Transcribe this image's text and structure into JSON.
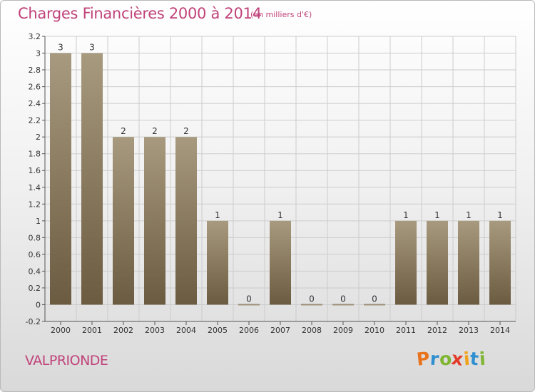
{
  "header": {
    "title": "Charges Financières 2000 à 2014",
    "subtitle": "(en milliers d'€)"
  },
  "footer": {
    "commune": "VALPRIONDE",
    "logo_letters": [
      "P",
      "r",
      "o",
      "x",
      "i",
      "t",
      "i"
    ],
    "logo_colors": [
      "#e8731c",
      "#2f8fd0",
      "#7fb531",
      "#e33b2a",
      "#f0a21b",
      "#2f8fd0",
      "#7fb531"
    ]
  },
  "colors": {
    "title": "#c0437a",
    "bar_top": "#a89a7e",
    "bar_bottom": "#6b5b40",
    "grid": "#cccccc"
  },
  "chart_data": {
    "type": "bar",
    "title": "Charges Financières 2000 à 2014",
    "subtitle": "(en milliers d'€)",
    "xlabel": "",
    "ylabel": "",
    "categories": [
      "2000",
      "2001",
      "2002",
      "2003",
      "2004",
      "2005",
      "2006",
      "2007",
      "2008",
      "2009",
      "2010",
      "2011",
      "2012",
      "2013",
      "2014"
    ],
    "values": [
      3,
      3,
      2,
      2,
      2,
      1,
      0,
      1,
      0,
      0,
      0,
      1,
      1,
      1,
      1
    ],
    "data_labels": [
      "3",
      "3",
      "2",
      "2",
      "2",
      "1",
      "0",
      "1",
      "0",
      "0",
      "0",
      "1",
      "1",
      "1",
      "1"
    ],
    "y_ticks": [
      "-0.2",
      "0",
      "0.2",
      "0.4",
      "0.6",
      "0.8",
      "1",
      "1.2",
      "1.4",
      "1.6",
      "1.8",
      "2",
      "2.2",
      "2.4",
      "2.6",
      "2.8",
      "3",
      "3.2"
    ],
    "ylim": [
      -0.2,
      3.2
    ],
    "grid": true,
    "legend": "none"
  }
}
